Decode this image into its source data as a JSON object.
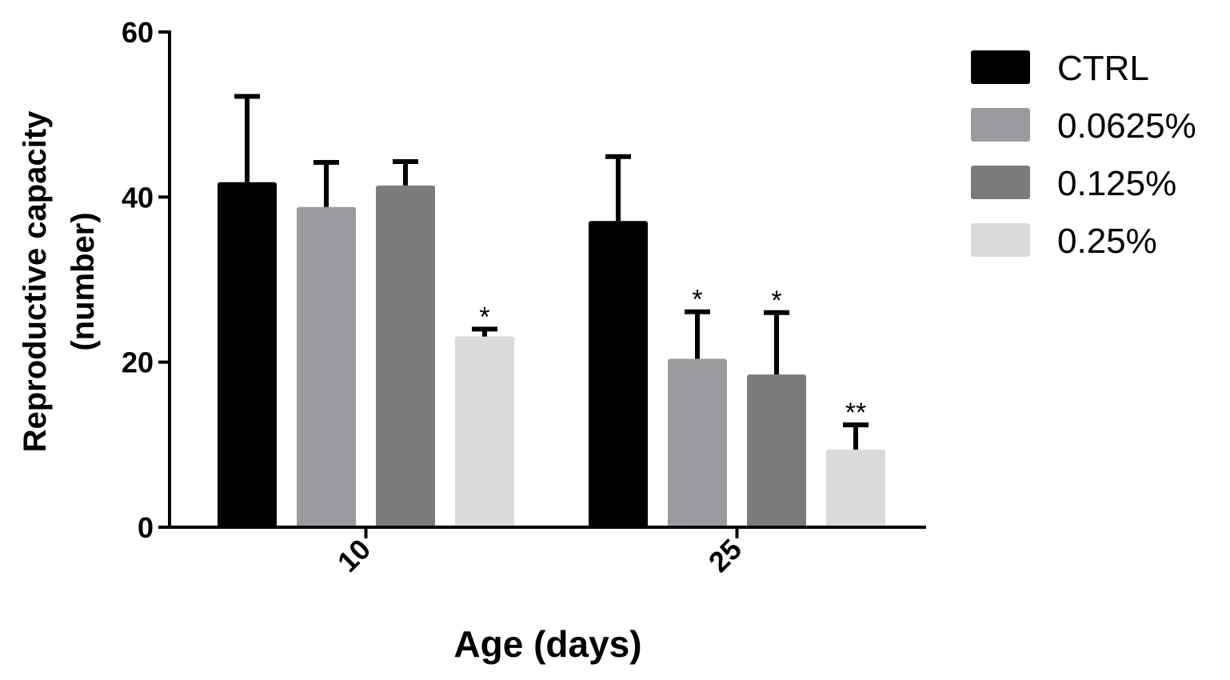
{
  "chart_data": {
    "type": "bar",
    "title": "",
    "xlabel": "Age (days)",
    "ylabel_line1": "Reproductive capacity",
    "ylabel_line2": "(number)",
    "ylim": [
      0,
      60
    ],
    "yticks": [
      0,
      20,
      40,
      60
    ],
    "categories": [
      "10",
      "25"
    ],
    "series": [
      {
        "name": "CTRL",
        "color": "#000000",
        "values": [
          41.8,
          37.1
        ],
        "errors": [
          10.4,
          7.8
        ],
        "annotations": [
          "",
          ""
        ]
      },
      {
        "name": "0.0625%",
        "color": "#9b9b9f",
        "values": [
          38.8,
          20.4
        ],
        "errors": [
          5.4,
          5.7
        ],
        "annotations": [
          "",
          "*"
        ]
      },
      {
        "name": "0.125%",
        "color": "#7b7b7d",
        "values": [
          41.4,
          18.5
        ],
        "errors": [
          2.9,
          7.5
        ],
        "annotations": [
          "",
          "*"
        ]
      },
      {
        "name": "0.25%",
        "color": "#dadada",
        "values": [
          23.1,
          9.4
        ],
        "errors": [
          0.9,
          3.0
        ],
        "annotations": [
          "*",
          "**"
        ]
      }
    ],
    "legend_position": "right"
  }
}
